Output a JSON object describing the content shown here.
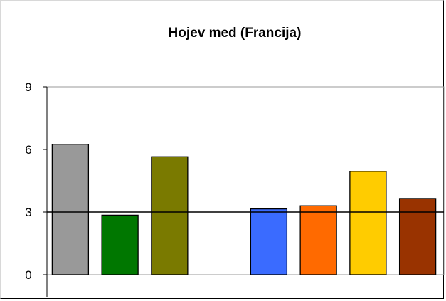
{
  "chart_data": {
    "type": "bar",
    "title": "Hojev med (Francija)",
    "xlabel": "",
    "ylabel": "",
    "ylim": [
      0,
      9
    ],
    "yticks": [
      "0",
      "3",
      "6",
      "9"
    ],
    "reference_line": 3,
    "legend": "none",
    "grid": false,
    "bars": [
      {
        "value": 6.25,
        "color": "#999999"
      },
      {
        "value": 2.85,
        "color": "#007700"
      },
      {
        "value": 5.65,
        "color": "#7a7a00"
      },
      {
        "value": null,
        "color": ""
      },
      {
        "value": 3.15,
        "color": "#3a6bff"
      },
      {
        "value": 3.3,
        "color": "#ff6a00"
      },
      {
        "value": 4.95,
        "color": "#ffcc00"
      },
      {
        "value": 3.65,
        "color": "#993300"
      }
    ]
  }
}
